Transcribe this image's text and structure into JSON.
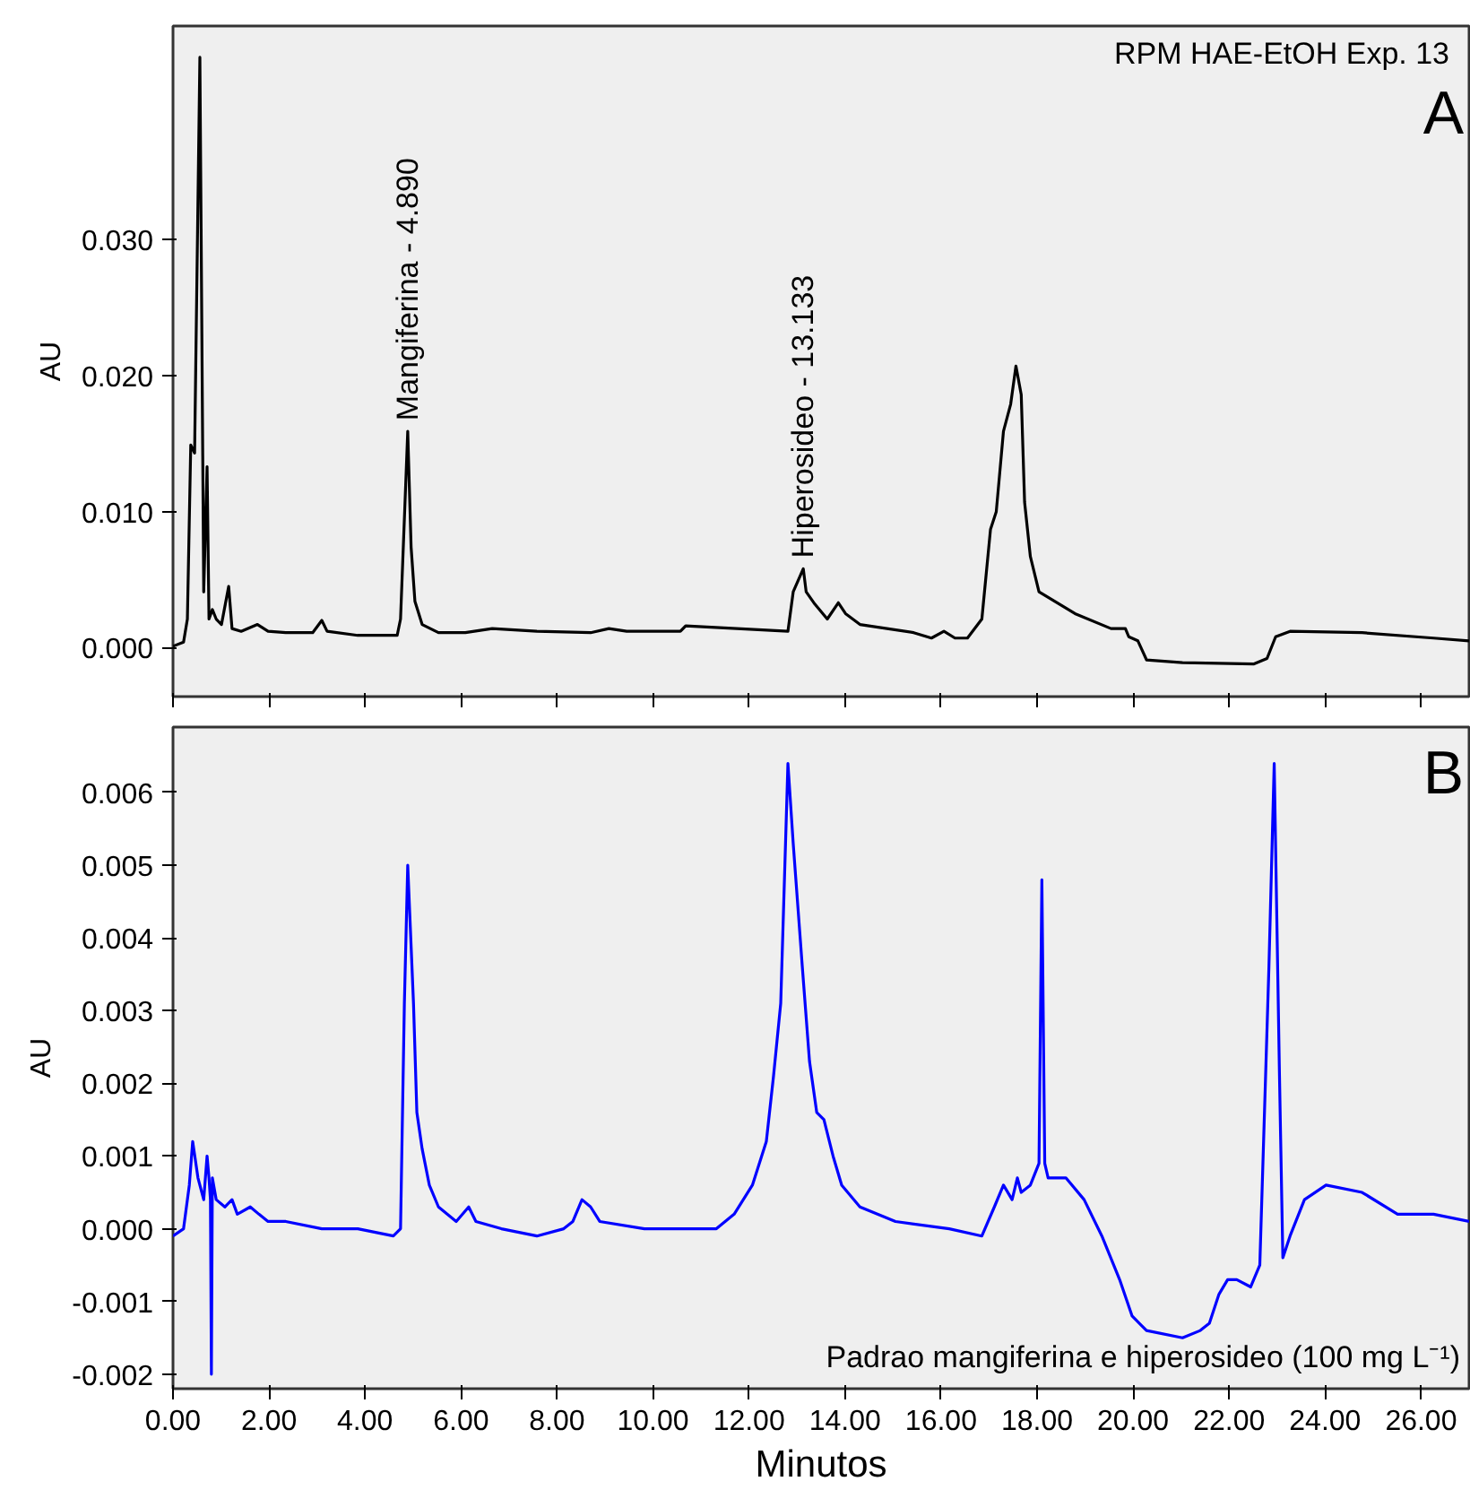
{
  "chart_data": [
    {
      "type": "line",
      "ylabel": "AU",
      "xlim": [
        0,
        27
      ],
      "ylim": [
        -0.0036,
        0.0457
      ],
      "xticks": [
        0,
        2,
        4,
        6,
        8,
        10,
        12,
        14,
        16,
        18,
        20,
        22,
        24,
        26
      ],
      "yticks": [
        {
          "value": 0,
          "label": "0.000"
        },
        {
          "value": 0.01,
          "label": "0.010"
        },
        {
          "value": 0.02,
          "label": "0.020"
        },
        {
          "value": 0.03,
          "label": "0.030"
        }
      ],
      "tick_labels": "y",
      "grid": false,
      "series": [
        {
          "color": "#000000",
          "x": [
            0,
            0.22,
            0.3,
            0.37,
            0.45,
            0.56,
            0.64,
            0.71,
            0.75,
            0.82,
            0.9,
            1.01,
            1.16,
            1.23,
            1.42,
            1.76,
            1.98,
            2.35,
            2.91,
            3.1,
            3.21,
            3.85,
            4.67,
            4.74,
            4.89,
            4.96,
            5.04,
            5.19,
            5.53,
            6.09,
            6.65,
            7.58,
            8.7,
            9.08,
            9.45,
            10.57,
            10.68,
            12.81,
            12.92,
            13.13,
            13.19,
            13.37,
            13.63,
            13.86,
            14.01,
            14.31,
            15.43,
            15.8,
            16.06,
            16.29,
            16.55,
            16.85,
            17.03,
            17.15,
            17.3,
            17.45,
            17.56,
            17.67,
            17.74,
            17.86,
            18.04,
            18.79,
            19.54,
            19.84,
            19.91,
            20.1,
            20.28,
            21.03,
            22.52,
            22.79,
            22.97,
            23.27,
            24.77,
            26.26,
            27.0
          ],
          "values": [
            0.0001,
            0.0004,
            0.0021,
            0.0149,
            0.0143,
            0.0434,
            0.0041,
            0.0133,
            0.0021,
            0.0028,
            0.0021,
            0.0017,
            0.0045,
            0.0014,
            0.0012,
            0.0017,
            0.0012,
            0.0011,
            0.0011,
            0.002,
            0.0012,
            0.0009,
            0.0009,
            0.0021,
            0.0159,
            0.0074,
            0.0034,
            0.0017,
            0.0011,
            0.0011,
            0.0014,
            0.0012,
            0.0011,
            0.0014,
            0.0012,
            0.0012,
            0.0016,
            0.0012,
            0.0041,
            0.0058,
            0.0041,
            0.0032,
            0.0021,
            0.0033,
            0.0025,
            0.0017,
            0.0011,
            0.0007,
            0.0012,
            0.0007,
            0.0007,
            0.0021,
            0.0087,
            0.01,
            0.0159,
            0.0179,
            0.0207,
            0.0186,
            0.0107,
            0.0067,
            0.0041,
            0.0025,
            0.0014,
            0.0014,
            0.0008,
            0.0005,
            -0.0009,
            -0.0011,
            -0.0012,
            -0.0008,
            0.0008,
            0.0012,
            0.0011,
            0.0007,
            0.0005
          ]
        }
      ],
      "annotations": [
        "RPM HAE-EtOH Exp. 13",
        "A",
        {
          "text": "Mangiferina - 4.890",
          "x": 4.89,
          "y": 0.0159
        },
        {
          "text": "Hiperosideo - 13.133",
          "x": 13.13,
          "y": 0.0058
        }
      ]
    },
    {
      "type": "line",
      "xlabel": "Minutos",
      "ylabel": "AU",
      "xlim": [
        0,
        27
      ],
      "ylim": [
        -0.0022,
        0.0069
      ],
      "xticks": [
        {
          "value": 0,
          "label": "0.00"
        },
        {
          "value": 2,
          "label": "2.00"
        },
        {
          "value": 4,
          "label": "4.00"
        },
        {
          "value": 6,
          "label": "6.00"
        },
        {
          "value": 8,
          "label": "8.00"
        },
        {
          "value": 10,
          "label": "10.00"
        },
        {
          "value": 12,
          "label": "12.00"
        },
        {
          "value": 14,
          "label": "14.00"
        },
        {
          "value": 16,
          "label": "16.00"
        },
        {
          "value": 18,
          "label": "18.00"
        },
        {
          "value": 20,
          "label": "20.00"
        },
        {
          "value": 22,
          "label": "22.00"
        },
        {
          "value": 24,
          "label": "24.00"
        },
        {
          "value": 26,
          "label": "26.00"
        }
      ],
      "yticks": [
        {
          "value": -0.002,
          "label": "-0.002"
        },
        {
          "value": -0.001,
          "label": "-0.001"
        },
        {
          "value": 0,
          "label": "0.000"
        },
        {
          "value": 0.001,
          "label": "0.001"
        },
        {
          "value": 0.002,
          "label": "0.002"
        },
        {
          "value": 0.003,
          "label": "0.003"
        },
        {
          "value": 0.004,
          "label": "0.004"
        },
        {
          "value": 0.005,
          "label": "0.005"
        },
        {
          "value": 0.006,
          "label": "0.006"
        }
      ],
      "grid": false,
      "series": [
        {
          "color": "#0000ff",
          "x": [
            0,
            0.22,
            0.34,
            0.41,
            0.52,
            0.64,
            0.71,
            0.75,
            0.78,
            0.8,
            0.82,
            0.9,
            1.08,
            1.23,
            1.34,
            1.61,
            1.79,
            1.98,
            2.35,
            3.1,
            3.85,
            4.59,
            4.74,
            4.82,
            4.89,
            5.01,
            5.08,
            5.19,
            5.34,
            5.53,
            5.9,
            6.16,
            6.31,
            6.84,
            7.58,
            8.14,
            8.33,
            8.52,
            8.7,
            8.89,
            9.82,
            10.57,
            11.32,
            11.69,
            12.07,
            12.36,
            12.51,
            12.66,
            12.81,
            12.92,
            13.11,
            13.26,
            13.41,
            13.56,
            13.75,
            13.93,
            14.31,
            15.05,
            16.17,
            16.85,
            17.11,
            17.3,
            17.48,
            17.59,
            17.67,
            17.86,
            18.04,
            18.1,
            18.16,
            18.23,
            18.6,
            18.98,
            19.35,
            19.72,
            19.98,
            20.28,
            21.03,
            21.4,
            21.59,
            21.79,
            21.97,
            22.16,
            22.45,
            22.64,
            22.83,
            22.94,
            23.05,
            23.12,
            23.27,
            23.57,
            24.02,
            24.77,
            25.51,
            26.26,
            27.0
          ],
          "values": [
            -0.0001,
            0.0,
            0.0006,
            0.0012,
            0.0007,
            0.0004,
            0.001,
            0.0007,
            0.0004,
            -0.002,
            0.0007,
            0.0004,
            0.0003,
            0.0004,
            0.0002,
            0.0003,
            0.0002,
            0.0001,
            0.0001,
            0.0,
            0.0,
            -0.0001,
            0.0,
            0.0031,
            0.005,
            0.0031,
            0.0016,
            0.0011,
            0.0006,
            0.0003,
            0.0001,
            0.0003,
            0.0001,
            0.0,
            -0.0001,
            0.0,
            0.0001,
            0.0004,
            0.0003,
            0.0001,
            0.0,
            0.0,
            0.0,
            0.0002,
            0.0006,
            0.0012,
            0.0021,
            0.0031,
            0.0064,
            0.0053,
            0.0036,
            0.0023,
            0.0016,
            0.0015,
            0.001,
            0.0006,
            0.0003,
            0.0001,
            0.0,
            -0.0001,
            0.0003,
            0.0006,
            0.0004,
            0.0007,
            0.0005,
            0.0006,
            0.0009,
            0.0048,
            0.0009,
            0.0007,
            0.0007,
            0.0004,
            -0.0001,
            -0.0007,
            -0.0012,
            -0.0014,
            -0.0015,
            -0.0014,
            -0.0013,
            -0.0009,
            -0.0007,
            -0.0007,
            -0.0008,
            -0.0005,
            0.0036,
            0.0064,
            0.0021,
            -0.0004,
            -0.0001,
            0.0004,
            0.0006,
            0.0005,
            0.0002,
            0.0002,
            0.0001
          ]
        }
      ],
      "annotations": [
        "B",
        "Padrao mangiferina e hiperosideo (100 mg L⁻¹)"
      ]
    }
  ]
}
